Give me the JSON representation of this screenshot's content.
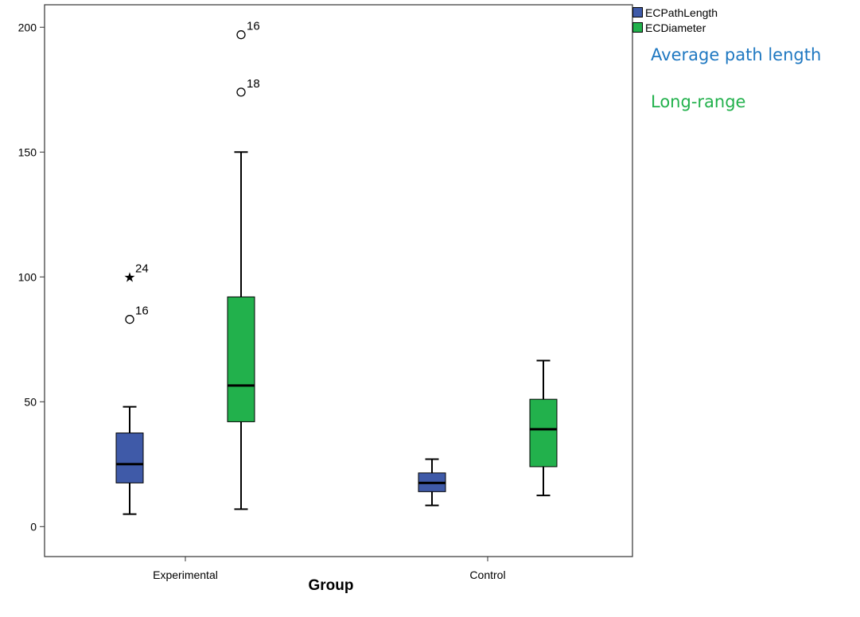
{
  "chart_data": {
    "type": "boxplot",
    "xlabel": "Group",
    "ylabel": "",
    "ylim": [
      -12,
      209
    ],
    "yticks": [
      0,
      50,
      100,
      150,
      200
    ],
    "categories": [
      "Experimental",
      "Control"
    ],
    "series": [
      {
        "name": "ECPathLength",
        "color": "#3f5aa8",
        "boxes": [
          {
            "category": "Experimental",
            "min": 5,
            "q1": 17.5,
            "median": 25,
            "q3": 37.5,
            "max": 48,
            "outliers": [
              {
                "value": 83,
                "label": "16",
                "marker": "circle"
              },
              {
                "value": 100,
                "label": "24",
                "marker": "star"
              }
            ]
          },
          {
            "category": "Control",
            "min": 8.5,
            "q1": 14,
            "median": 17.5,
            "q3": 21.5,
            "max": 27,
            "outliers": []
          }
        ]
      },
      {
        "name": "ECDiameter",
        "color": "#22b14c",
        "boxes": [
          {
            "category": "Experimental",
            "min": 7,
            "q1": 42,
            "median": 56.5,
            "q3": 92,
            "max": 150,
            "outliers": [
              {
                "value": 174,
                "label": "18",
                "marker": "circle"
              },
              {
                "value": 197,
                "label": "16",
                "marker": "circle"
              }
            ]
          },
          {
            "category": "Control",
            "min": 12.5,
            "q1": 24,
            "median": 39,
            "q3": 51,
            "max": 66.5,
            "outliers": []
          }
        ]
      }
    ],
    "legend_position": "top-right-outside",
    "annotations": [
      {
        "text": "Average path length",
        "color": "#1f78c1"
      },
      {
        "text": "Long-range",
        "color": "#22b14c"
      }
    ]
  }
}
